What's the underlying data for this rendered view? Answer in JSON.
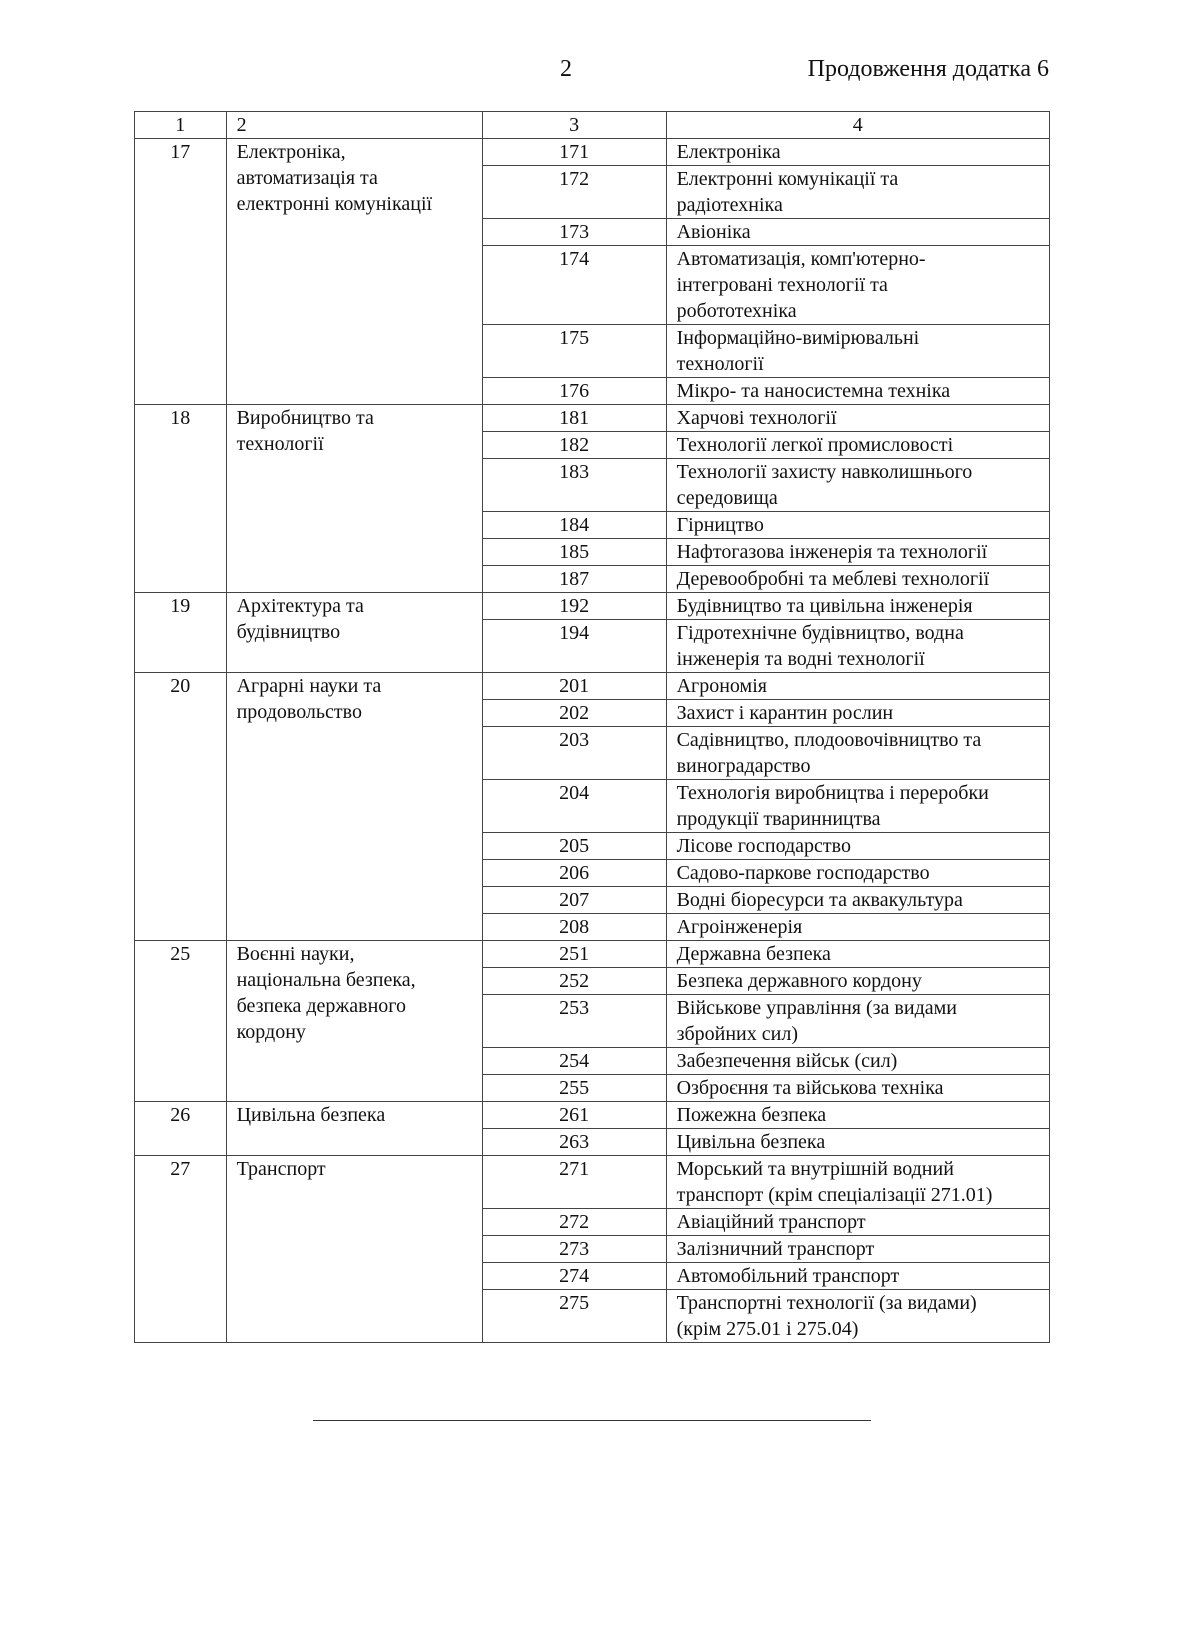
{
  "page_number": "2",
  "continuation": "Продовження додатка 6",
  "header": [
    "1",
    "2",
    "3",
    "4"
  ],
  "groups": [
    {
      "code": "17",
      "name": "Електроніка,\nавтоматизація та\nелектронні комунікації",
      "items": [
        {
          "code": "171",
          "name": "Електроніка"
        },
        {
          "code": "172",
          "name": "Електронні комунікації та\nрадіотехніка"
        },
        {
          "code": "173",
          "name": "Авіоніка"
        },
        {
          "code": "174",
          "name": "Автоматизація, комп'ютерно-\nінтегровані технології та\nробототехніка"
        },
        {
          "code": "175",
          "name": "Інформаційно-вимірювальні\nтехнології"
        },
        {
          "code": "176",
          "name": "Мікро- та наносистемна техніка"
        }
      ]
    },
    {
      "code": "18",
      "name": "Виробництво та\nтехнології",
      "items": [
        {
          "code": "181",
          "name": "Харчові технології"
        },
        {
          "code": "182",
          "name": "Технології легкої промисловості"
        },
        {
          "code": "183",
          "name": "Технології захисту навколишнього\nсередовища"
        },
        {
          "code": "184",
          "name": "Гірництво"
        },
        {
          "code": "185",
          "name": "Нафтогазова інженерія та технології"
        },
        {
          "code": "187",
          "name": "Деревообробні та меблеві технології"
        }
      ]
    },
    {
      "code": "19",
      "name": "Архітектура та\nбудівництво",
      "items": [
        {
          "code": "192",
          "name": "Будівництво та цивільна інженерія"
        },
        {
          "code": "194",
          "name": "Гідротехнічне будівництво, водна\nінженерія та водні технології"
        }
      ]
    },
    {
      "code": "20",
      "name": "Аграрні науки та\nпродовольство",
      "items": [
        {
          "code": "201",
          "name": "Агрономія"
        },
        {
          "code": "202",
          "name": "Захист і карантин рослин"
        },
        {
          "code": "203",
          "name": "Садівництво, плодоовочівництво та\nвиноградарство"
        },
        {
          "code": "204",
          "name": "Технологія виробництва і переробки\nпродукції тваринництва"
        },
        {
          "code": "205",
          "name": "Лісове господарство"
        },
        {
          "code": "206",
          "name": "Садово-паркове господарство"
        },
        {
          "code": "207",
          "name": "Водні біоресурси та аквакультура"
        },
        {
          "code": "208",
          "name": "Агроінженерія"
        }
      ]
    },
    {
      "code": "25",
      "name": "Воєнні науки,\nнаціональна безпека,\nбезпека державного\nкордону",
      "items": [
        {
          "code": "251",
          "name": "Державна безпека"
        },
        {
          "code": "252",
          "name": "Безпека державного кордону"
        },
        {
          "code": "253",
          "name": "Військове управління (за видами\nзбройних сил)"
        },
        {
          "code": "254",
          "name": "Забезпечення військ (сил)"
        },
        {
          "code": "255",
          "name": "Озброєння та військова техніка"
        }
      ]
    },
    {
      "code": "26",
      "name": "Цивільна безпека",
      "items": [
        {
          "code": "261",
          "name": "Пожежна безпека"
        },
        {
          "code": "263",
          "name": "Цивільна безпека"
        }
      ]
    },
    {
      "code": "27",
      "name": "Транспорт",
      "items": [
        {
          "code": "271",
          "name": "Морський та внутрішній водний\nтранспорт (крім спеціалізації 271.01)"
        },
        {
          "code": "272",
          "name": "Авіаційний транспорт"
        },
        {
          "code": "273",
          "name": "Залізничний транспорт"
        },
        {
          "code": "274",
          "name": "Автомобільний транспорт"
        },
        {
          "code": "275",
          "name": "Транспортні технології (за видами)\n(крім 275.01 і 275.04)"
        }
      ]
    }
  ]
}
